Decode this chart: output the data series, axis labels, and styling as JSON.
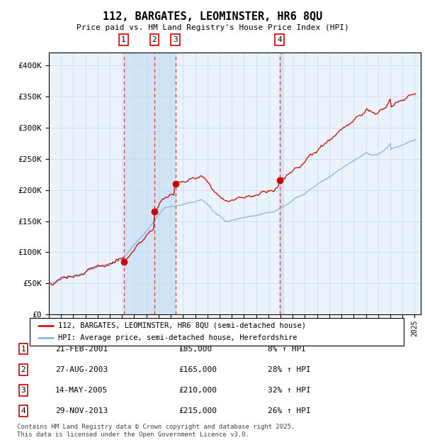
{
  "title": "112, BARGATES, LEOMINSTER, HR6 8QU",
  "subtitle": "Price paid vs. HM Land Registry's House Price Index (HPI)",
  "legend_red": "112, BARGATES, LEOMINSTER, HR6 8QU (semi-detached house)",
  "legend_blue": "HPI: Average price, semi-detached house, Herefordshire",
  "footer": "Contains HM Land Registry data © Crown copyright and database right 2025.\nThis data is licensed under the Open Government Licence v3.0.",
  "transactions": [
    {
      "num": 1,
      "date": "21-FEB-2001",
      "price": 85000,
      "pct": "8%",
      "year_x": 2001.13
    },
    {
      "num": 2,
      "date": "27-AUG-2003",
      "price": 165000,
      "pct": "28%",
      "year_x": 2003.65
    },
    {
      "num": 3,
      "date": "14-MAY-2005",
      "price": 210000,
      "pct": "32%",
      "year_x": 2005.37
    },
    {
      "num": 4,
      "date": "29-NOV-2013",
      "price": 215000,
      "pct": "26%",
      "year_x": 2013.91
    }
  ],
  "ylim": [
    0,
    420000
  ],
  "yticks": [
    0,
    50000,
    100000,
    150000,
    200000,
    250000,
    300000,
    350000,
    400000
  ],
  "bg_color": "#e8f0f8",
  "plot_bg": "#eaf2fb",
  "grid_color": "#c8d8e8",
  "red_color": "#cc0000",
  "blue_color": "#7aade0",
  "shade_color": "#d0e4f5",
  "dashed_color": "#dd2222",
  "box_color": "#cc0000",
  "xlim_start": 1995.0,
  "xlim_end": 2025.5
}
